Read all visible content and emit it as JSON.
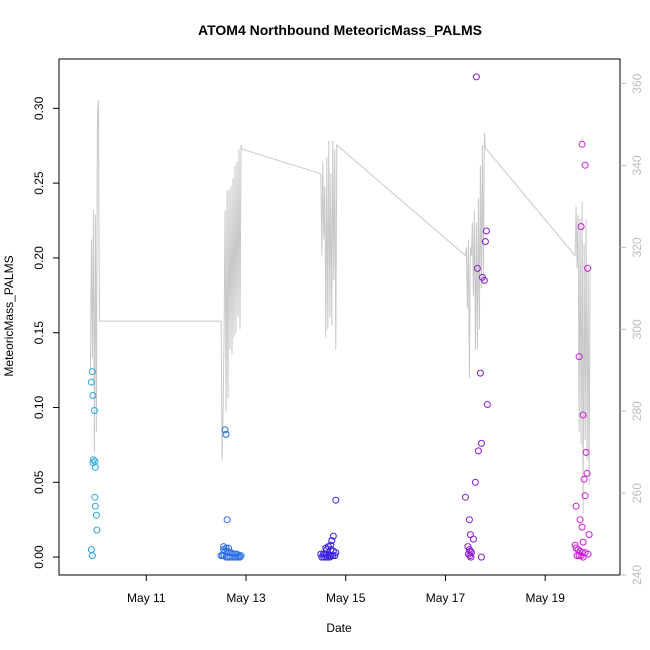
{
  "chart_data": {
    "type": "scatter",
    "title": "ATOM4 Northbound MeteoricMass_PALMS",
    "xlabel": "Date",
    "ylabel": "MeteoricMass_PALMS",
    "xlim": [
      9.25,
      20.5
    ],
    "ylim": [
      -0.012,
      0.333
    ],
    "x_ticks": [
      {
        "value": 11,
        "label": "May 11"
      },
      {
        "value": 13,
        "label": "May 13"
      },
      {
        "value": 15,
        "label": "May 15"
      },
      {
        "value": 17,
        "label": "May 17"
      },
      {
        "value": 19,
        "label": "May 19"
      }
    ],
    "y_ticks": [
      0.0,
      0.05,
      0.1,
      0.15,
      0.2,
      0.25,
      0.3
    ],
    "y_tick_labels": [
      "0.00",
      "0.05",
      "0.10",
      "0.15",
      "0.20",
      "0.25",
      "0.30"
    ],
    "secondary_y": {
      "ylim": [
        240,
        366
      ],
      "ticks": [
        240,
        260,
        280,
        300,
        320,
        340,
        360
      ],
      "tick_labels": [
        "240",
        "260",
        "280",
        "300",
        "320",
        "340",
        "360"
      ],
      "color": "#bdbdbd"
    },
    "grid": false,
    "legend": "none",
    "series": [
      {
        "color": "#29a8e0",
        "x": [
          9.92,
          9.9,
          9.93,
          9.96,
          9.94,
          9.97,
          9.98,
          9.97,
          9.98,
          10.0,
          10.01,
          9.9,
          9.92,
          9.93
        ],
        "y": [
          0.124,
          0.117,
          0.108,
          0.098,
          0.065,
          0.064,
          0.06,
          0.04,
          0.034,
          0.028,
          0.018,
          0.005,
          0.001,
          0.063
        ]
      },
      {
        "color": "#2f6fe4",
        "x": [
          12.58,
          12.6,
          12.62,
          12.55,
          12.6,
          12.65,
          12.55,
          12.58,
          12.62,
          12.66,
          12.7,
          12.74,
          12.78,
          12.82,
          12.86,
          12.9,
          12.5,
          12.53,
          12.56,
          12.6,
          12.64,
          12.68,
          12.72,
          12.76,
          12.8,
          12.84,
          12.88
        ],
        "y": [
          0.085,
          0.082,
          0.025,
          0.007,
          0.006,
          0.006,
          0.005,
          0.004,
          0.004,
          0.003,
          0.003,
          0.002,
          0.002,
          0.002,
          0.001,
          0.001,
          0.001,
          0.001,
          0.001,
          0.0,
          0.0,
          0.0,
          0.0,
          0.0,
          0.0,
          0.0,
          0.0
        ]
      },
      {
        "color": "#3a22e0",
        "x": [
          14.8,
          14.75,
          14.72,
          14.7,
          14.65,
          14.6,
          14.62,
          14.7,
          14.75,
          14.8,
          14.5,
          14.55,
          14.58,
          14.62,
          14.66,
          14.7,
          14.74,
          14.78,
          14.52,
          14.56,
          14.6,
          14.64,
          14.68
        ],
        "y": [
          0.038,
          0.014,
          0.011,
          0.008,
          0.007,
          0.006,
          0.005,
          0.005,
          0.004,
          0.003,
          0.002,
          0.002,
          0.002,
          0.002,
          0.001,
          0.001,
          0.001,
          0.001,
          0.0,
          0.0,
          0.0,
          0.0,
          0.0
        ]
      },
      {
        "color": "#8a1ad6",
        "x": [
          17.62,
          17.82,
          17.8,
          17.64,
          17.74,
          17.78,
          17.7,
          17.84,
          17.72,
          17.66,
          17.6,
          17.4,
          17.48,
          17.5,
          17.56,
          17.45,
          17.48,
          17.5,
          17.52,
          17.46,
          17.49,
          17.51,
          17.72
        ],
        "y": [
          0.321,
          0.218,
          0.211,
          0.193,
          0.187,
          0.185,
          0.123,
          0.102,
          0.076,
          0.071,
          0.05,
          0.04,
          0.025,
          0.015,
          0.012,
          0.007,
          0.005,
          0.004,
          0.003,
          0.002,
          0.001,
          0.0,
          0.0
        ]
      },
      {
        "color": "#cc1fd6",
        "x": [
          19.74,
          19.8,
          19.72,
          19.85,
          19.68,
          19.76,
          19.82,
          19.84,
          19.78,
          19.8,
          19.62,
          19.7,
          19.74,
          19.88,
          19.76,
          19.6,
          19.62,
          19.66,
          19.7,
          19.74,
          19.8,
          19.86,
          19.64,
          19.68,
          19.72,
          19.76
        ],
        "y": [
          0.276,
          0.262,
          0.221,
          0.193,
          0.134,
          0.095,
          0.07,
          0.056,
          0.052,
          0.041,
          0.034,
          0.025,
          0.02,
          0.015,
          0.01,
          0.008,
          0.006,
          0.005,
          0.004,
          0.003,
          0.003,
          0.002,
          0.001,
          0.001,
          0.001,
          0.0
        ]
      }
    ],
    "secondary_line": {
      "color": "#c8c8c8",
      "x": [
        9.88,
        9.9,
        9.92,
        9.94,
        9.96,
        9.98,
        10.0,
        10.02,
        10.04,
        10.06,
        12.5,
        12.52,
        12.54,
        12.56,
        12.58,
        12.6,
        12.62,
        12.64,
        12.66,
        12.68,
        12.7,
        12.72,
        12.74,
        12.76,
        12.78,
        12.8,
        12.82,
        12.84,
        12.86,
        12.88,
        12.9,
        12.92,
        14.5,
        14.52,
        14.54,
        14.56,
        14.58,
        14.6,
        14.62,
        14.64,
        14.66,
        14.68,
        14.7,
        14.72,
        14.74,
        14.76,
        14.78,
        14.8,
        14.82,
        17.4,
        17.42,
        17.44,
        17.46,
        17.48,
        17.5,
        17.52,
        17.54,
        17.56,
        17.58,
        17.6,
        17.62,
        17.64,
        17.66,
        17.68,
        17.7,
        17.72,
        17.74,
        17.76,
        17.78,
        17.8,
        17.82,
        19.6,
        19.62,
        19.64,
        19.66,
        19.68,
        19.7,
        19.72,
        19.74,
        19.76,
        19.78,
        19.8,
        19.82,
        19.84,
        19.86,
        19.88,
        19.9
      ],
      "y": [
        290,
        322,
        293,
        329,
        270,
        328,
        275,
        352,
        356,
        302,
        302,
        268,
        280,
        300,
        329,
        280,
        334,
        283,
        334,
        295,
        335,
        294,
        337,
        298,
        340,
        299,
        341,
        303,
        344,
        300,
        345,
        344,
        338,
        318,
        341,
        322,
        335,
        298,
        342,
        300,
        346,
        303,
        338,
        301,
        346,
        312,
        344,
        295,
        345,
        318,
        320,
        305,
        322,
        288,
        320,
        318,
        326,
        308,
        329,
        295,
        326,
        295,
        332,
        300,
        340,
        310,
        345,
        312,
        348,
        344,
        344,
        318,
        330,
        315,
        328,
        275,
        327,
        272,
        331,
        255,
        321,
        273,
        327,
        268,
        315,
        262,
        314
      ]
    }
  }
}
